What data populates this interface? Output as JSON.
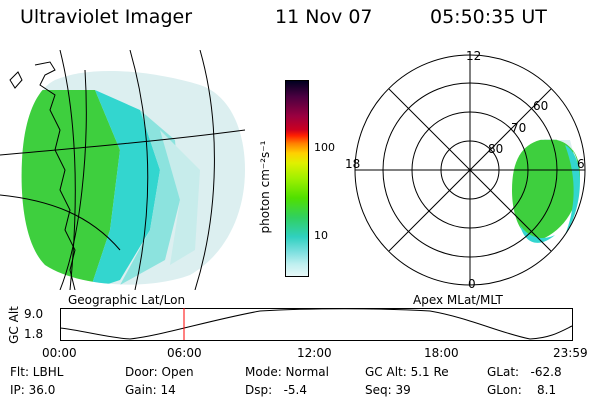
{
  "header": {
    "instrument": "Ultraviolet Imager",
    "date": "11 Nov 07",
    "time": "05:50:35 UT"
  },
  "colorbar": {
    "title": "photon cm⁻²s⁻¹",
    "ticks": [
      "100",
      "10"
    ],
    "colors": [
      "#000020",
      "#4a0040",
      "#9a0040",
      "#cc0020",
      "#ff2000",
      "#ff8000",
      "#ffd000",
      "#e0f000",
      "#a0f000",
      "#50e000",
      "#30d060",
      "#30d0c0",
      "#80e0e0",
      "#c0f0f0",
      "#e8f8f8"
    ]
  },
  "geo_panel": {
    "caption": "Geographic Lat/Lon"
  },
  "polar_panel": {
    "caption": "Apex MLat/MLT",
    "mlt_labels": [
      "12",
      "18",
      "6",
      "0"
    ],
    "lat_labels": [
      "60",
      "70",
      "80"
    ]
  },
  "altitude_plot": {
    "axis_label": "GC Alt",
    "y_ticks": [
      "9.0",
      "1.8"
    ],
    "x_ticks": [
      "00:00",
      "06:00",
      "12:00",
      "18:00",
      "23:59"
    ]
  },
  "status": {
    "flt": "Flt: LBHL",
    "ip": "IP: 36.0",
    "door": "Door: Open",
    "gain": "Gain: 14",
    "mode": "Mode: Normal",
    "dsp": "Dsp:   -5.4",
    "gcalt": "GC Alt: 5.1 Re",
    "seq": "Seq: 39",
    "glat": "GLat:   -62.8",
    "glon": "GLon:    8.1"
  },
  "colors": {
    "green": "#3ecf3e",
    "cyan": "#33d6cf",
    "pale": "#dceff0",
    "marker": "#ff0000"
  }
}
